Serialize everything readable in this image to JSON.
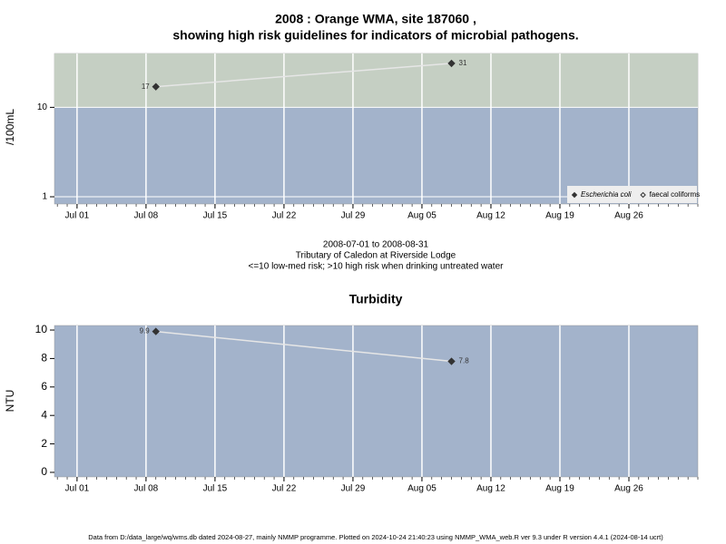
{
  "chart_data": [
    {
      "type": "line",
      "title": "2008 : Orange WMA, site 187060 ,",
      "subtitle": "showing high risk guidelines for indicators of microbial pathogens.",
      "annotations": [
        "2008-07-01 to 2008-08-31",
        "Tributary of Caledon at Riverside Lodge",
        "<=10 low-med risk; >10 high risk when drinking untreated water"
      ],
      "ylabel": "/100mL",
      "log_y": true,
      "ylim": [
        0.83,
        40
      ],
      "yticks": [
        1,
        10
      ],
      "xlim": [
        "2008-06-28T17:00",
        "2008-09-02"
      ],
      "xticks": [
        {
          "value": "2008-07-01",
          "label": "Jul 01"
        },
        {
          "value": "2008-07-08",
          "label": "Jul 08"
        },
        {
          "value": "2008-07-15",
          "label": "Jul 15"
        },
        {
          "value": "2008-07-22",
          "label": "Jul 22"
        },
        {
          "value": "2008-07-29",
          "label": "Jul 29"
        },
        {
          "value": "2008-08-05",
          "label": "Aug 05"
        },
        {
          "value": "2008-08-12",
          "label": "Aug 12"
        },
        {
          "value": "2008-08-19",
          "label": "Aug 19"
        },
        {
          "value": "2008-08-26",
          "label": "Aug 26"
        }
      ],
      "x": [
        "2008-07-09",
        "2008-08-08"
      ],
      "series": [
        {
          "name": "Escherichia coli",
          "color": "#333333",
          "marker": "filled",
          "values": [
            17,
            31
          ]
        },
        {
          "name": "faecal coliforms",
          "color": "#333333",
          "marker": "open",
          "values": [
            null,
            null
          ]
        }
      ],
      "background": "#a3b3cb",
      "bands": [
        {
          "from": 10,
          "color": "#c5cfc3"
        }
      ],
      "line_color": "#e6e6e6",
      "ygrid": true,
      "legend": "bottom-right"
    },
    {
      "type": "line",
      "title": "Turbidity",
      "ylabel": "NTU",
      "log_y": false,
      "ylim": [
        -0.32,
        10.32
      ],
      "yticks": [
        0,
        2,
        4,
        6,
        8,
        10
      ],
      "xlim": [
        "2008-06-28T17:00",
        "2008-09-02"
      ],
      "xticks": [
        {
          "value": "2008-07-01",
          "label": "Jul 01"
        },
        {
          "value": "2008-07-08",
          "label": "Jul 08"
        },
        {
          "value": "2008-07-15",
          "label": "Jul 15"
        },
        {
          "value": "2008-07-22",
          "label": "Jul 22"
        },
        {
          "value": "2008-07-29",
          "label": "Jul 29"
        },
        {
          "value": "2008-08-05",
          "label": "Aug 05"
        },
        {
          "value": "2008-08-12",
          "label": "Aug 12"
        },
        {
          "value": "2008-08-19",
          "label": "Aug 19"
        },
        {
          "value": "2008-08-26",
          "label": "Aug 26"
        }
      ],
      "x": [
        "2008-07-09",
        "2008-08-08"
      ],
      "series": [
        {
          "name": "Turbidity",
          "color": "#333333",
          "marker": "filled",
          "values": [
            9.9,
            7.8
          ]
        }
      ],
      "background": "#a3b3cb",
      "bands": [],
      "line_color": "#e6e6e6",
      "ygrid": false
    }
  ],
  "footer": "Data from D:/data_large/wq/wms.db dated 2024-08-27, mainly NMMP programme. Plotted on 2024-10-24 21:40:23 using NMMP_WMA_web.R ver 9.3 under R version 4.4.1 (2024-08-14 ucrt)"
}
